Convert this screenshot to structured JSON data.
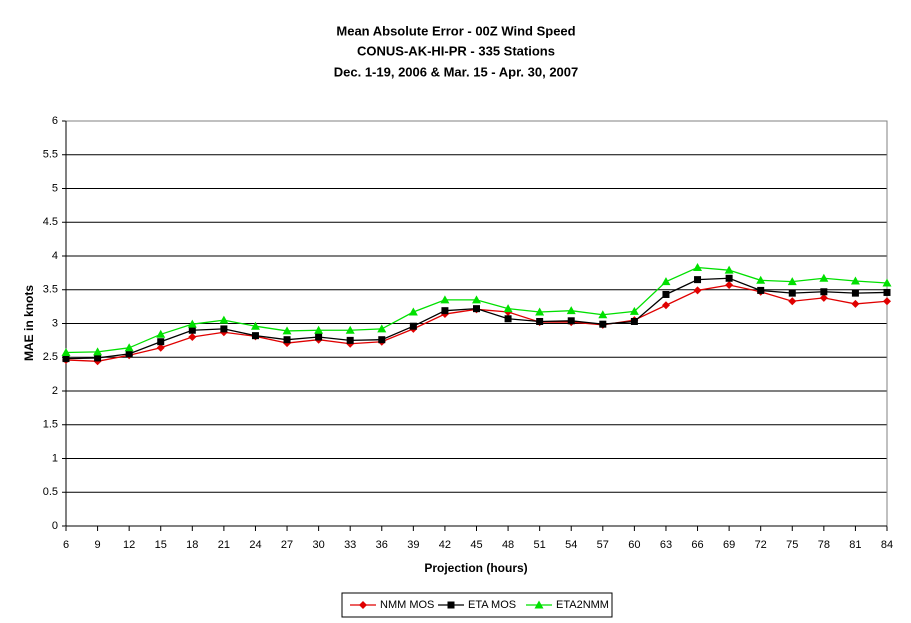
{
  "chart_data": {
    "type": "line",
    "title": [
      "Mean Absolute Error - 00Z Wind Speed",
      "CONUS-AK-HI-PR - 335 Stations",
      "Dec. 1-19, 2006 & Mar. 15 - Apr. 30, 2007"
    ],
    "x_label": "Projection (hours)",
    "y_label": "MAE in knots",
    "x": [
      6,
      9,
      12,
      15,
      18,
      21,
      24,
      27,
      30,
      33,
      36,
      39,
      42,
      45,
      48,
      51,
      54,
      57,
      60,
      63,
      66,
      69,
      72,
      75,
      78,
      81,
      84
    ],
    "xlim": [
      6,
      84
    ],
    "xticks": [
      6,
      9,
      12,
      15,
      18,
      21,
      24,
      27,
      30,
      33,
      36,
      39,
      42,
      45,
      48,
      51,
      54,
      57,
      60,
      63,
      66,
      69,
      72,
      75,
      78,
      81,
      84
    ],
    "ylim": [
      0,
      6
    ],
    "yticks": [
      0,
      0.5,
      1,
      1.5,
      2,
      2.5,
      3,
      3.5,
      4,
      4.5,
      5,
      5.5,
      6
    ],
    "grid": true,
    "legend": "bottom",
    "series": [
      {
        "name": "NMM MOS",
        "color": "#e00000",
        "marker": "diamond",
        "values": [
          2.46,
          2.44,
          2.53,
          2.64,
          2.8,
          2.87,
          2.81,
          2.71,
          2.76,
          2.7,
          2.73,
          2.92,
          3.14,
          3.21,
          3.17,
          3.02,
          3.02,
          2.98,
          3.05,
          3.27,
          3.49,
          3.57,
          3.47,
          3.33,
          3.38,
          3.29,
          3.33
        ]
      },
      {
        "name": "ETA MOS",
        "color": "#000000",
        "marker": "square",
        "values": [
          2.48,
          2.49,
          2.55,
          2.73,
          2.9,
          2.92,
          2.82,
          2.76,
          2.8,
          2.75,
          2.76,
          2.96,
          3.19,
          3.22,
          3.07,
          3.03,
          3.04,
          2.99,
          3.03,
          3.43,
          3.65,
          3.67,
          3.49,
          3.45,
          3.47,
          3.45,
          3.46
        ]
      },
      {
        "name": "ETA2NMM",
        "color": "#00e000",
        "marker": "triangle",
        "values": [
          2.57,
          2.58,
          2.64,
          2.84,
          2.99,
          3.05,
          2.96,
          2.89,
          2.9,
          2.9,
          2.92,
          3.17,
          3.35,
          3.35,
          3.22,
          3.17,
          3.19,
          3.13,
          3.18,
          3.62,
          3.83,
          3.79,
          3.64,
          3.62,
          3.67,
          3.63,
          3.6
        ]
      }
    ]
  }
}
